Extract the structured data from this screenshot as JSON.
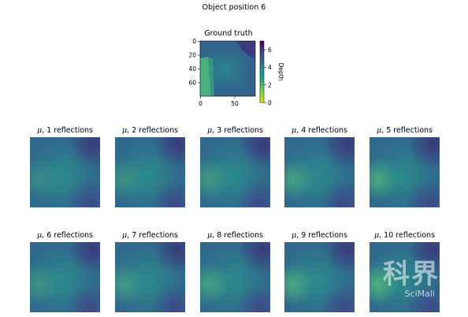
{
  "suptitle": "Object position 6",
  "ground_truth": {
    "title": "Ground truth",
    "y_ticks": [
      "0",
      "20",
      "40",
      "60"
    ],
    "x_ticks": [
      "0",
      "50"
    ],
    "colorbar_label": "Depth",
    "colorbar_ticks": [
      "0",
      "2",
      "4",
      "6"
    ]
  },
  "panels": [
    {
      "mu": "μ",
      "label": ", 1 reflections"
    },
    {
      "mu": "μ",
      "label": ", 2 reflections"
    },
    {
      "mu": "μ",
      "label": ", 3 reflections"
    },
    {
      "mu": "μ",
      "label": ", 4 reflections"
    },
    {
      "mu": "μ",
      "label": ", 5 reflections"
    },
    {
      "mu": "μ",
      "label": ", 6 reflections"
    },
    {
      "mu": "μ",
      "label": ", 7 reflections"
    },
    {
      "mu": "μ",
      "label": ", 8 reflections"
    },
    {
      "mu": "μ",
      "label": ", 9 reflections"
    },
    {
      "mu": "μ",
      "label": ", 10 reflections"
    }
  ],
  "watermark": {
    "main": "科界",
    "sub": "SciMall"
  },
  "chart_data": {
    "type": "heatmap",
    "title": "Object position 6",
    "colormap": "viridis",
    "colorbar": {
      "label": "Depth",
      "range": [
        0,
        7
      ],
      "ticks": [
        0,
        2,
        4,
        6
      ]
    },
    "ground_truth": {
      "xlim": [
        0,
        80
      ],
      "ylim": [
        80,
        0
      ],
      "x_ticks": [
        0,
        50
      ],
      "y_ticks": [
        0,
        20,
        40,
        60
      ]
    },
    "reflections": [
      1,
      2,
      3,
      4,
      5,
      6,
      7,
      8,
      9,
      10
    ]
  }
}
